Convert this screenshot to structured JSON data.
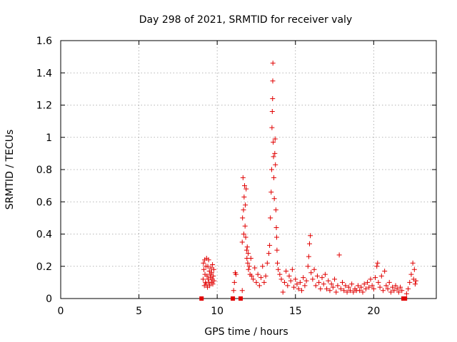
{
  "chart_data": {
    "type": "scatter",
    "title": "Day 298 of 2021, SRMTID for receiver valy",
    "xlabel": "GPS time / hours",
    "ylabel": "SRMTID / TECUs",
    "xlim": [
      0,
      24
    ],
    "ylim": [
      0,
      1.6
    ],
    "x_ticks": [
      0,
      5,
      10,
      15,
      20
    ],
    "y_ticks": [
      0,
      0.2,
      0.4,
      0.6,
      0.8,
      1,
      1.2,
      1.4,
      1.6
    ],
    "x_tick_labels": [
      "0",
      "5",
      "10",
      "15",
      "20"
    ],
    "y_tick_labels": [
      "0",
      "0.2",
      "0.4",
      "0.6",
      "0.8",
      "1",
      "1.2",
      "1.4",
      "1.6"
    ],
    "grid": true,
    "marker": "plus",
    "marker_color": "#e00000",
    "series": [
      {
        "name": "SRMTID",
        "points": [
          [
            9.0,
            0.0
          ],
          [
            9.1,
            0.12
          ],
          [
            9.12,
            0.22
          ],
          [
            9.15,
            0.18
          ],
          [
            9.18,
            0.08
          ],
          [
            9.2,
            0.24
          ],
          [
            9.22,
            0.15
          ],
          [
            9.25,
            0.1
          ],
          [
            9.28,
            0.2
          ],
          [
            9.3,
            0.09
          ],
          [
            9.32,
            0.25
          ],
          [
            9.35,
            0.14
          ],
          [
            9.38,
            0.07
          ],
          [
            9.4,
            0.2
          ],
          [
            9.42,
            0.12
          ],
          [
            9.45,
            0.24
          ],
          [
            9.48,
            0.1
          ],
          [
            9.5,
            0.17
          ],
          [
            9.52,
            0.08
          ],
          [
            9.55,
            0.15
          ],
          [
            9.58,
            0.13
          ],
          [
            9.6,
            0.19
          ],
          [
            9.62,
            0.1
          ],
          [
            9.65,
            0.16
          ],
          [
            9.68,
            0.12
          ],
          [
            9.7,
            0.21
          ],
          [
            9.72,
            0.09
          ],
          [
            9.75,
            0.14
          ],
          [
            9.78,
            0.18
          ],
          [
            9.8,
            0.11
          ],
          [
            11.0,
            0.0
          ],
          [
            11.05,
            0.05
          ],
          [
            11.1,
            0.1
          ],
          [
            11.15,
            0.16
          ],
          [
            11.2,
            0.15
          ],
          [
            11.5,
            0.0
          ],
          [
            11.6,
            0.05
          ],
          [
            11.6,
            0.35
          ],
          [
            11.62,
            0.5
          ],
          [
            11.65,
            0.75
          ],
          [
            11.68,
            0.55
          ],
          [
            11.7,
            0.4
          ],
          [
            11.72,
            0.63
          ],
          [
            11.75,
            0.7
          ],
          [
            11.78,
            0.45
          ],
          [
            11.8,
            0.58
          ],
          [
            11.82,
            0.38
          ],
          [
            11.85,
            0.68
          ],
          [
            11.88,
            0.3
          ],
          [
            11.9,
            0.25
          ],
          [
            11.92,
            0.32
          ],
          [
            11.95,
            0.22
          ],
          [
            11.98,
            0.28
          ],
          [
            12.0,
            0.18
          ],
          [
            12.05,
            0.2
          ],
          [
            12.1,
            0.15
          ],
          [
            12.15,
            0.25
          ],
          [
            12.2,
            0.14
          ],
          [
            12.3,
            0.12
          ],
          [
            12.4,
            0.19
          ],
          [
            12.5,
            0.1
          ],
          [
            12.6,
            0.15
          ],
          [
            12.7,
            0.08
          ],
          [
            12.8,
            0.13
          ],
          [
            12.9,
            0.2
          ],
          [
            13.0,
            0.1
          ],
          [
            13.1,
            0.14
          ],
          [
            13.2,
            0.22
          ],
          [
            13.3,
            0.28
          ],
          [
            13.35,
            0.33
          ],
          [
            13.4,
            0.5
          ],
          [
            13.45,
            0.66
          ],
          [
            13.48,
            0.8
          ],
          [
            13.5,
            1.06
          ],
          [
            13.52,
            1.16
          ],
          [
            13.54,
            1.24
          ],
          [
            13.55,
            1.35
          ],
          [
            13.56,
            1.46
          ],
          [
            13.58,
            0.97
          ],
          [
            13.6,
            0.88
          ],
          [
            13.62,
            0.75
          ],
          [
            13.65,
            0.62
          ],
          [
            13.68,
            0.9
          ],
          [
            13.7,
            0.99
          ],
          [
            13.72,
            0.83
          ],
          [
            13.75,
            0.55
          ],
          [
            13.78,
            0.44
          ],
          [
            13.8,
            0.38
          ],
          [
            13.82,
            0.3
          ],
          [
            13.85,
            0.22
          ],
          [
            13.9,
            0.18
          ],
          [
            14.0,
            0.15
          ],
          [
            14.1,
            0.12
          ],
          [
            14.2,
            0.04
          ],
          [
            14.3,
            0.1
          ],
          [
            14.4,
            0.17
          ],
          [
            14.5,
            0.08
          ],
          [
            14.6,
            0.14
          ],
          [
            14.7,
            0.11
          ],
          [
            14.8,
            0.18
          ],
          [
            14.9,
            0.07
          ],
          [
            15.0,
            0.12
          ],
          [
            15.1,
            0.09
          ],
          [
            15.2,
            0.06
          ],
          [
            15.3,
            0.1
          ],
          [
            15.4,
            0.05
          ],
          [
            15.5,
            0.13
          ],
          [
            15.6,
            0.08
          ],
          [
            15.7,
            0.11
          ],
          [
            15.8,
            0.2
          ],
          [
            15.85,
            0.26
          ],
          [
            15.9,
            0.34
          ],
          [
            15.95,
            0.39
          ],
          [
            16.0,
            0.16
          ],
          [
            16.1,
            0.12
          ],
          [
            16.2,
            0.18
          ],
          [
            16.3,
            0.08
          ],
          [
            16.4,
            0.14
          ],
          [
            16.5,
            0.1
          ],
          [
            16.6,
            0.06
          ],
          [
            16.7,
            0.13
          ],
          [
            16.8,
            0.09
          ],
          [
            16.9,
            0.15
          ],
          [
            17.0,
            0.06
          ],
          [
            17.1,
            0.11
          ],
          [
            17.2,
            0.05
          ],
          [
            17.3,
            0.09
          ],
          [
            17.4,
            0.07
          ],
          [
            17.5,
            0.12
          ],
          [
            17.6,
            0.04
          ],
          [
            17.7,
            0.08
          ],
          [
            17.8,
            0.27
          ],
          [
            17.9,
            0.06
          ],
          [
            18.0,
            0.1
          ],
          [
            18.1,
            0.05
          ],
          [
            18.2,
            0.08
          ],
          [
            18.3,
            0.04
          ],
          [
            18.4,
            0.07
          ],
          [
            18.5,
            0.05
          ],
          [
            18.6,
            0.09
          ],
          [
            18.7,
            0.04
          ],
          [
            18.8,
            0.06
          ],
          [
            18.9,
            0.05
          ],
          [
            19.0,
            0.08
          ],
          [
            19.1,
            0.05
          ],
          [
            19.2,
            0.07
          ],
          [
            19.3,
            0.04
          ],
          [
            19.4,
            0.09
          ],
          [
            19.5,
            0.06
          ],
          [
            19.6,
            0.1
          ],
          [
            19.7,
            0.07
          ],
          [
            19.8,
            0.12
          ],
          [
            19.9,
            0.08
          ],
          [
            20.0,
            0.06
          ],
          [
            20.1,
            0.13
          ],
          [
            20.2,
            0.2
          ],
          [
            20.25,
            0.22
          ],
          [
            20.3,
            0.1
          ],
          [
            20.4,
            0.07
          ],
          [
            20.5,
            0.14
          ],
          [
            20.6,
            0.05
          ],
          [
            20.7,
            0.17
          ],
          [
            20.8,
            0.08
          ],
          [
            20.9,
            0.06
          ],
          [
            21.0,
            0.1
          ],
          [
            21.1,
            0.04
          ],
          [
            21.2,
            0.07
          ],
          [
            21.3,
            0.05
          ],
          [
            21.4,
            0.08
          ],
          [
            21.5,
            0.06
          ],
          [
            21.6,
            0.04
          ],
          [
            21.7,
            0.07
          ],
          [
            21.8,
            0.05
          ],
          [
            21.9,
            0.0
          ],
          [
            22.0,
            0.0
          ],
          [
            22.1,
            0.03
          ],
          [
            22.2,
            0.06
          ],
          [
            22.3,
            0.1
          ],
          [
            22.4,
            0.15
          ],
          [
            22.5,
            0.22
          ],
          [
            22.55,
            0.12
          ],
          [
            22.6,
            0.18
          ],
          [
            22.65,
            0.09
          ],
          [
            22.7,
            0.11
          ]
        ]
      }
    ]
  }
}
